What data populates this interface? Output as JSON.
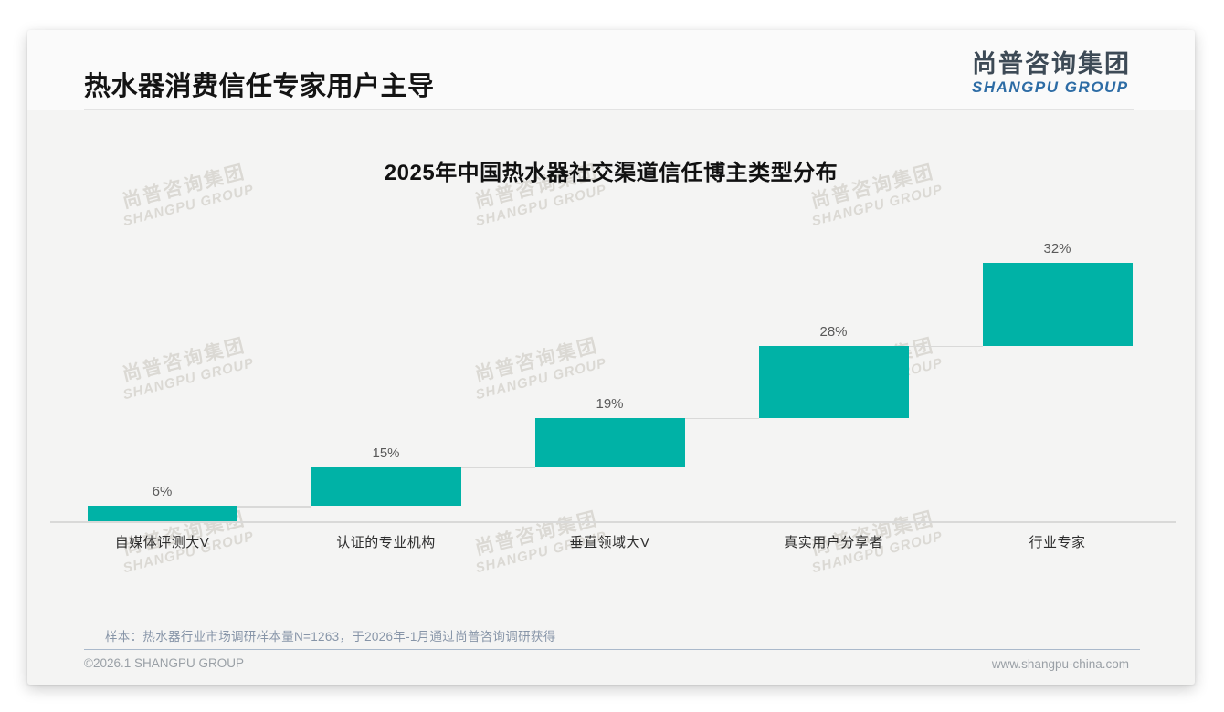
{
  "page": {
    "header": {
      "title": "热水器消费信任专家用户主导",
      "logo_cn": "尚普咨询集团",
      "logo_en": "SHANGPU GROUP"
    },
    "footer": {
      "note": "样本：热水器行业市场调研样本量N=1263，于2026年-1月通过尚普咨询调研获得",
      "copyright": "©2026.1 SHANGPU GROUP",
      "website": "www.shangpu-china.com"
    },
    "watermark": {
      "line1": "尚普咨询集团",
      "line2": "SHANGPU GROUP"
    }
  },
  "colors": {
    "bar_teal": "#00B2A6",
    "logo_dark": "#3D4A56",
    "logo_blue": "#2D6CA5",
    "axis_gray": "#D9D9D8"
  },
  "chart_data": {
    "type": "bar",
    "subtype": "waterfall",
    "title": "2025年中国热水器社交渠道信任博主类型分布",
    "categories": [
      "自媒体评测大V",
      "认证的专业机构",
      "垂直领域大V",
      "真实用户分享者",
      "行业专家"
    ],
    "values": [
      6,
      15,
      19,
      28,
      32
    ],
    "value_labels": [
      "6%",
      "15%",
      "19%",
      "28%",
      "32%"
    ],
    "cumulative_levels": [
      6,
      21,
      40,
      68,
      100
    ],
    "unit": "%",
    "xlabel": "",
    "ylabel": "",
    "ylim": [
      0,
      100
    ],
    "grid": false,
    "legend": "none",
    "bar_color": "#00B2A6"
  }
}
